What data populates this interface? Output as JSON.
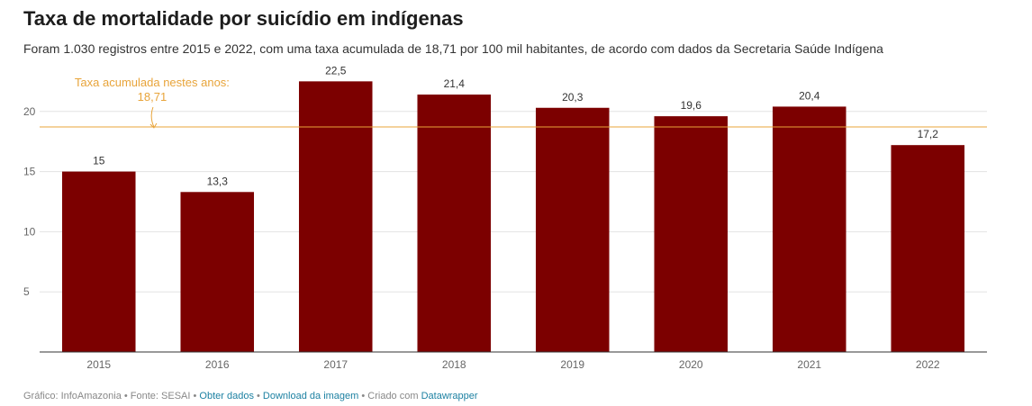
{
  "header": {
    "title": "Taxa de mortalidade por suicídio em indígenas",
    "subtitle": "Foram 1.030 registros entre 2015 e 2022, com uma taxa acumulada de 18,71 por 100 mil habitantes, de acordo com dados da Secretaria Saúde Indígena"
  },
  "chart_data": {
    "type": "bar",
    "categories": [
      "2015",
      "2016",
      "2017",
      "2018",
      "2019",
      "2020",
      "2021",
      "2022"
    ],
    "values": [
      15,
      13.3,
      22.5,
      21.4,
      20.3,
      19.6,
      20.4,
      17.2
    ],
    "value_labels": [
      "15",
      "13,3",
      "22,5",
      "21,4",
      "20,3",
      "19,6",
      "20,4",
      "17,2"
    ],
    "ylim": [
      0,
      23.5
    ],
    "yticks": [
      5,
      10,
      15,
      20
    ],
    "ytick_labels": [
      "5",
      "10",
      "15",
      "20"
    ],
    "grid": true,
    "bar_color": "#7c0000",
    "reference_line": {
      "value": 18.71,
      "label_line1": "Taxa acumulada nestes anos:",
      "label_line2": "18,71",
      "color": "#e8a43a"
    }
  },
  "footer": {
    "prefix": "Gráfico: InfoAmazonia • Fonte: SESAI • ",
    "link_data": "Obter dados",
    "sep1": " • ",
    "link_image": "Download da imagem",
    "sep2": " • Criado com ",
    "link_tool": "Datawrapper"
  }
}
